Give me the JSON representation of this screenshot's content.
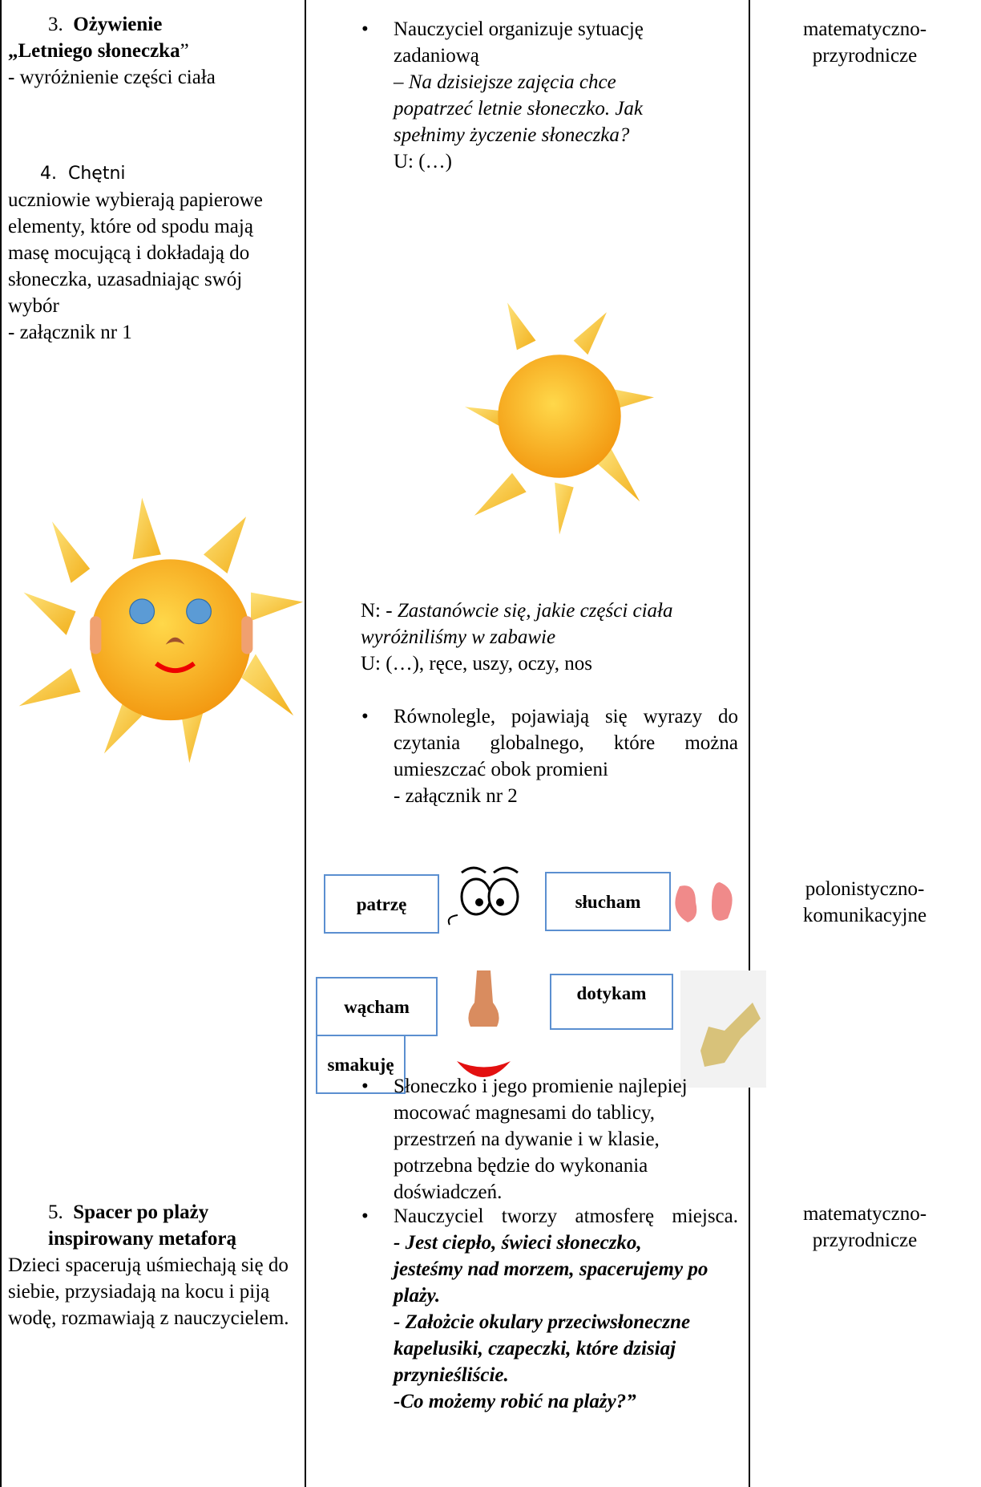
{
  "row1": {
    "activity": {
      "number": "3.",
      "title_line1": "Ożywienie",
      "title_line2": "„Letniego słoneczka",
      "title_close": "”",
      "desc": "- wyróżnienie części ciała"
    },
    "activity2": {
      "number": "4.",
      "lead": "Chętni",
      "text": "uczniowie wybierają papierowe elementy, które od spodu mają masę mocującą i  dokładają do słoneczka, uzasadniając swój wybór",
      "note": "- załącznik nr 1"
    },
    "procedure": {
      "bullet1": "Nauczyciel organizuje sytuację zadaniową",
      "quote1": "– Na dzisiejsze zajęcia chce popatrzeć letnie słoneczko. Jak spełnimy życzenie słoneczka?",
      "answer1": "U: (…)",
      "teacher_prefix": "N: -",
      "quote2": "Zastanówcie się, jakie części ciała  wyróżniliśmy w zabawie",
      "answer2": "U: (…),  ręce, uszy, oczy, nos",
      "bullet2": "Równolegle, pojawiają się wyrazy do czytania globalnego, które można umieszczać obok promieni",
      "note": "- załącznik nr 2",
      "cards": [
        "patrzę",
        "słucham",
        "wącham",
        "dotykam",
        "smakuję"
      ],
      "bullet3": "Słoneczko i jego promienie najlepiej mocować magnesami do tablicy, przestrzeń na dywanie i w klasie, potrzebna będzie do wykonania doświadczeń."
    },
    "areas": [
      [
        "matematyczno-",
        "przyrodnicze"
      ],
      [
        "polonistyczno-",
        "komunikacyjne"
      ]
    ]
  },
  "row2": {
    "activity": {
      "number": "5.",
      "title": "Spacer po plaży inspirowany metaforą",
      "text": "Dzieci spacerują uśmiechają się do siebie, przysiadają na kocu i piją wodę, rozmawiają z nauczycielem."
    },
    "procedure": {
      "bullet1": "Nauczyciel tworzy atmosferę miejsca.",
      "quotes": [
        "- Jest ciepło, świeci słoneczko, jesteśmy nad morzem, spacerujemy po plaży.",
        "- Założcie okulary przeciwsłoneczne kapelusiki, czapeczki, które dzisiaj przynieśliście.",
        "-Co możemy robić na plaży?”"
      ]
    },
    "area": [
      "matematyczno-",
      "przyrodnicze"
    ]
  }
}
